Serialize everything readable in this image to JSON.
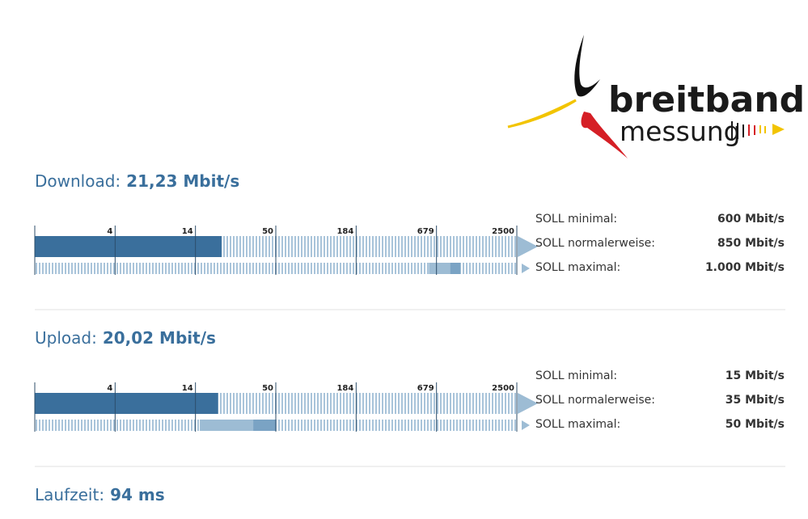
{
  "logo": {
    "line1": "breitband",
    "line2": "messung"
  },
  "scale": {
    "xlim": [
      1,
      2500
    ],
    "xticks": [
      4,
      14,
      50,
      184,
      679,
      2500
    ]
  },
  "sections": [
    {
      "label": "Download:",
      "result": {
        "value": 21.23,
        "label": "21,23 Mbit/s"
      },
      "targets": [
        {
          "label": "SOLL minimal:",
          "value": 600,
          "value_label": "600 Mbit/s"
        },
        {
          "label": "SOLL normalerweise:",
          "value": 850,
          "value_label": "850 Mbit/s"
        },
        {
          "label": "SOLL maximal:",
          "value": 1000,
          "value_label": "1.000 Mbit/s"
        }
      ]
    },
    {
      "label": "Upload:",
      "result": {
        "value": 20.02,
        "label": "20,02 Mbit/s"
      },
      "targets": [
        {
          "label": "SOLL minimal:",
          "value": 15,
          "value_label": "15 Mbit/s"
        },
        {
          "label": "SOLL normalerweise:",
          "value": 35,
          "value_label": "35 Mbit/s"
        },
        {
          "label": "SOLL maximal:",
          "value": 50,
          "value_label": "50 Mbit/s"
        }
      ]
    },
    {
      "label": "Laufzeit:",
      "result": {
        "label": "94 ms"
      }
    }
  ]
}
